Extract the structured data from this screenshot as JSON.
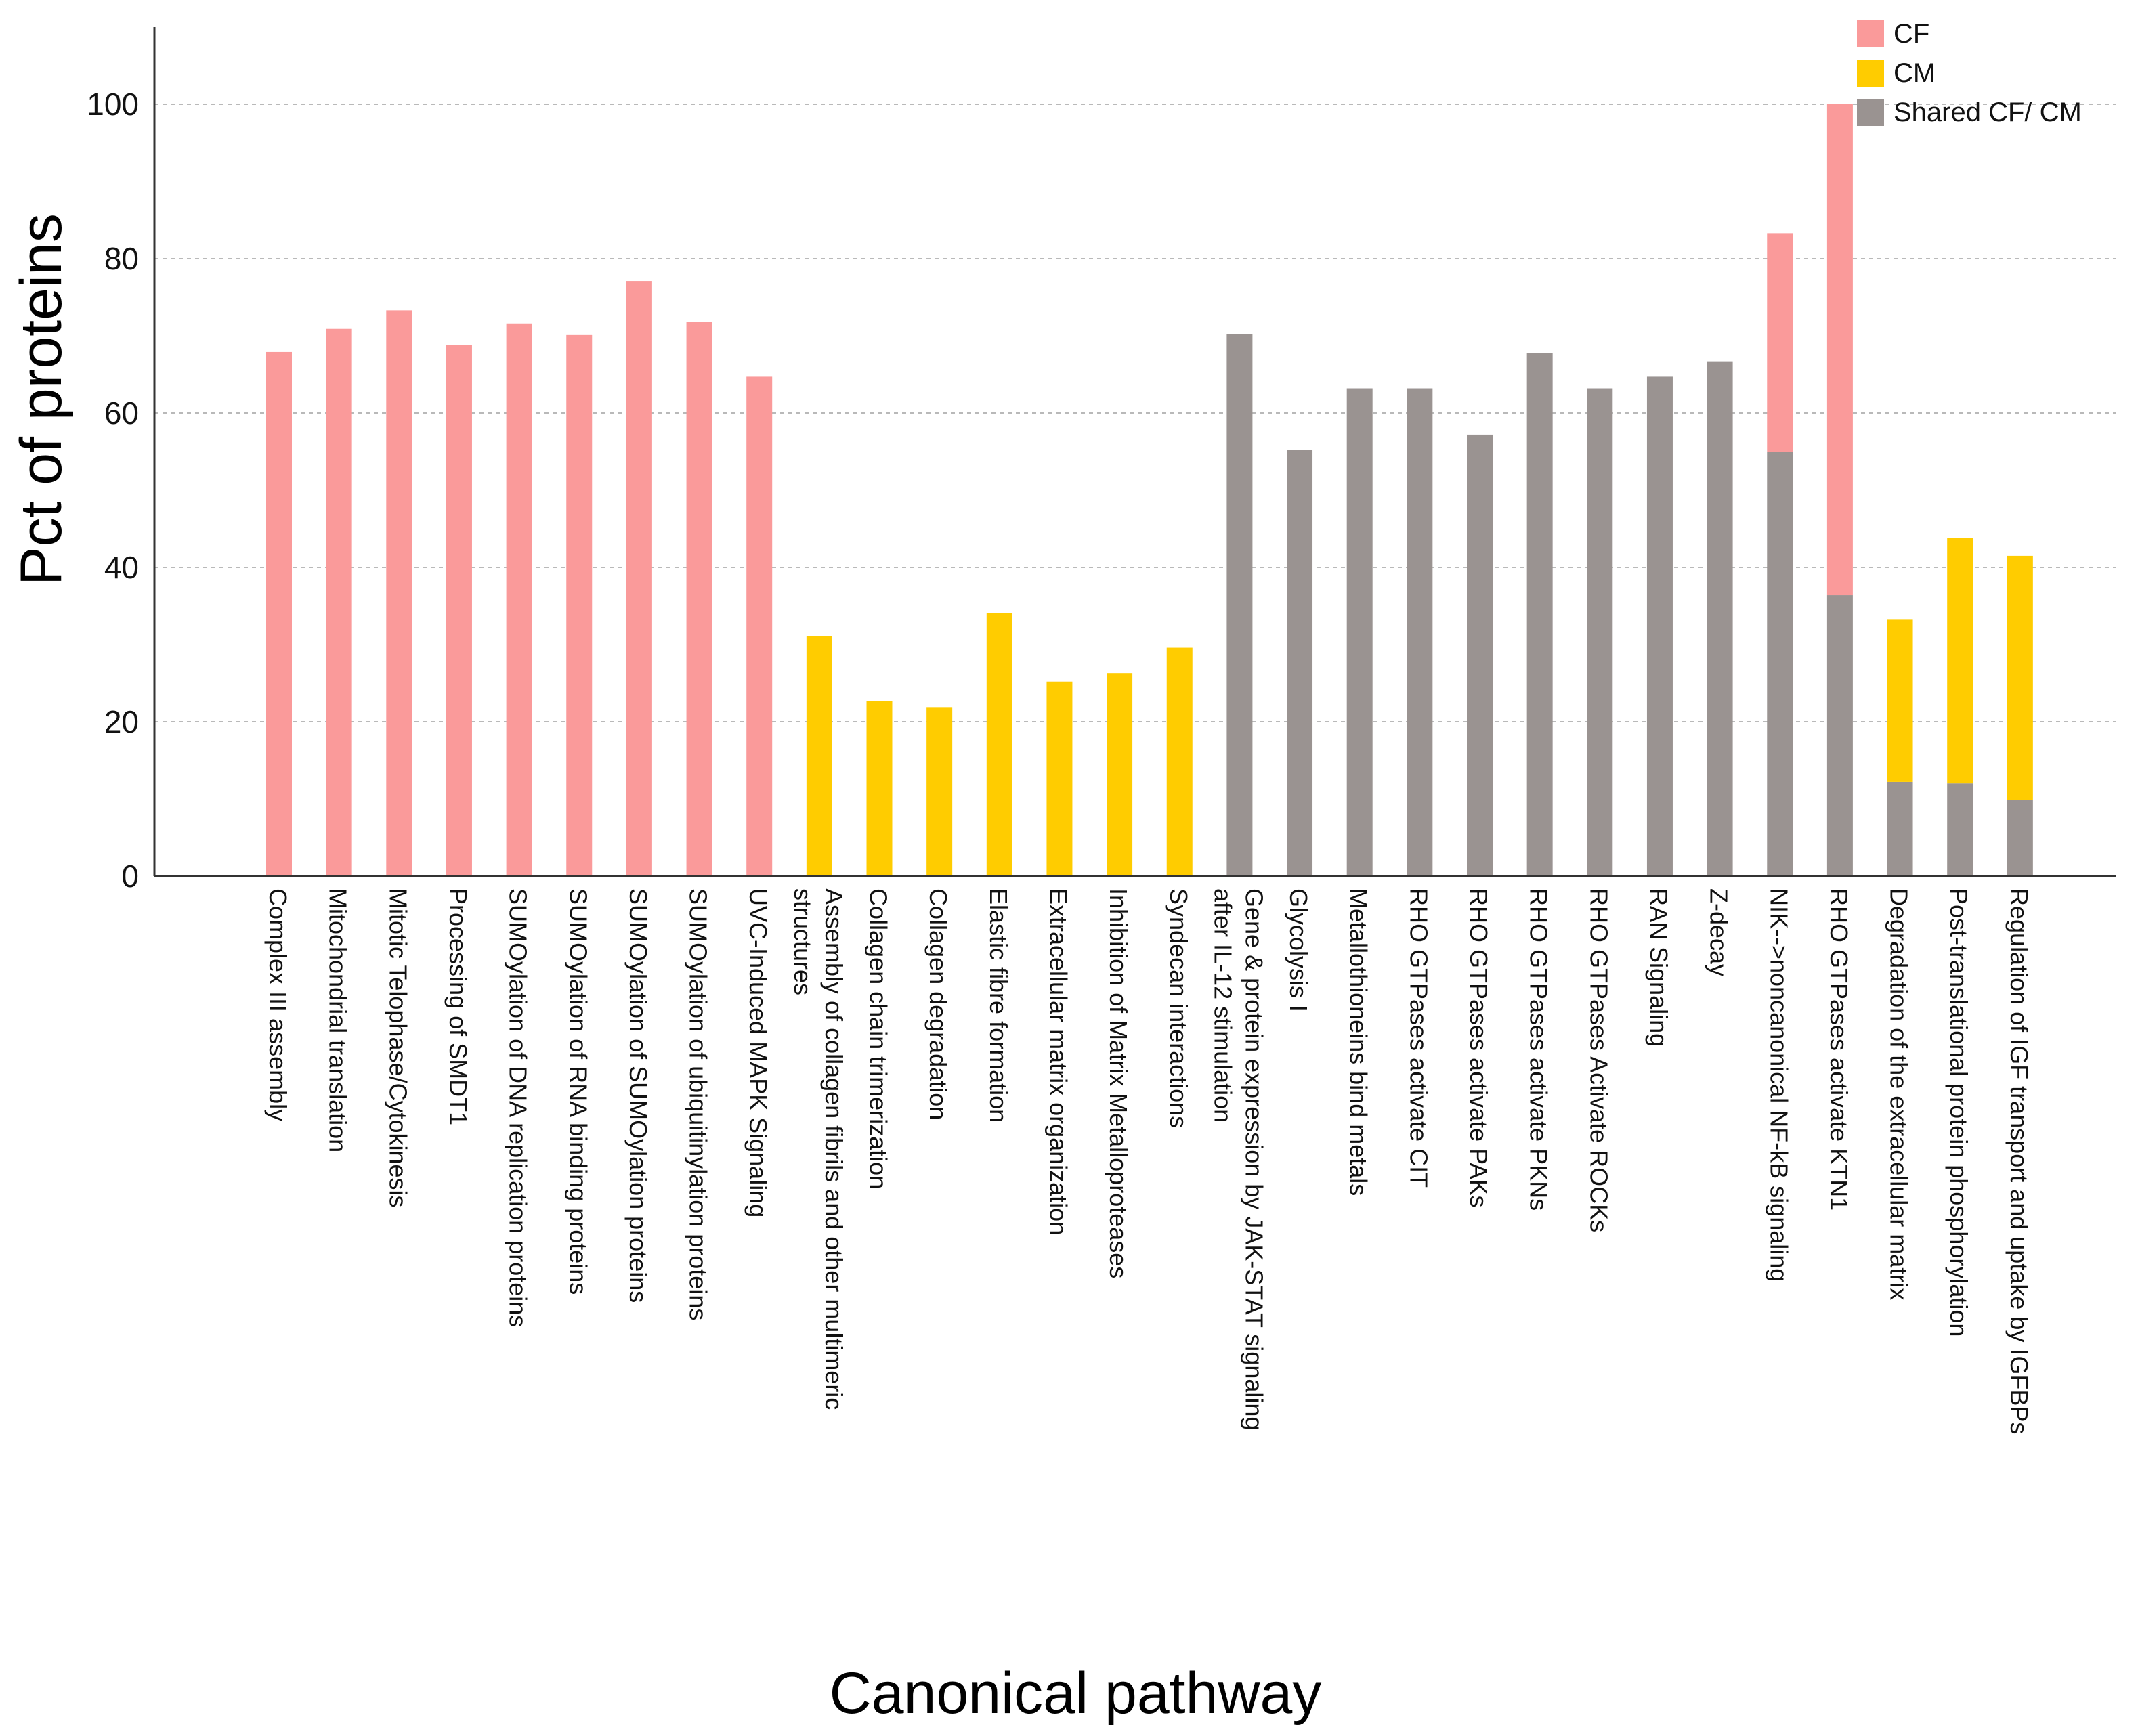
{
  "chart_data": {
    "type": "bar",
    "stacked": true,
    "title": "",
    "xlabel": "Canonical pathway",
    "ylabel": "Pct of proteins",
    "ylim": [
      0,
      110
    ],
    "yticks": [
      0,
      20,
      40,
      60,
      80,
      100
    ],
    "grid": "horizontal-dashed",
    "legend_position": "top-right",
    "categories": [
      [
        "Complex III assembly"
      ],
      [
        "Mitochondrial translation"
      ],
      [
        "Mitotic Telophase/Cytokinesis"
      ],
      [
        "Processing of SMDT1"
      ],
      [
        "SUMOylation of DNA replication proteins"
      ],
      [
        "SUMOylation of RNA binding proteins"
      ],
      [
        "SUMOylation of SUMOylation proteins"
      ],
      [
        "SUMOylation of ubiquitinylation proteins"
      ],
      [
        "UVC-Induced MAPK Signaling"
      ],
      [
        "Assembly of collagen fibrils and other multimeric",
        "structures"
      ],
      [
        "Collagen chain trimerization"
      ],
      [
        "Collagen degradation"
      ],
      [
        "Elastic fibre formation"
      ],
      [
        "Extracellular matrix organization"
      ],
      [
        "Inhibition of Matrix Metalloproteases"
      ],
      [
        "Syndecan interactions"
      ],
      [
        "Gene & protein expression by JAK-STAT signaling",
        "after IL-12 stimulation"
      ],
      [
        "Glycolysis I"
      ],
      [
        "Metallothioneins bind metals"
      ],
      [
        "RHO GTPases activate CIT"
      ],
      [
        "RHO GTPases activate PAKs"
      ],
      [
        "RHO GTPases activate PKNs"
      ],
      [
        "RHO GTPases Activate ROCKs"
      ],
      [
        "RAN Signaling"
      ],
      [
        "Z-decay"
      ],
      [
        "NIK-->noncanonical NF-kB signaling"
      ],
      [
        "RHO GTPases activate KTN1"
      ],
      [
        "Degradation of the extracellular matrix"
      ],
      [
        "Post-translational protein phosphorylation"
      ],
      [
        "Regulation of IGF transport and uptake by IGFBPs"
      ]
    ],
    "series": [
      {
        "name": "Shared CF/ CM",
        "color": "#9a9391",
        "values": [
          0,
          0,
          0,
          0,
          0,
          0,
          0,
          0,
          0,
          0,
          0,
          0,
          0,
          0,
          0,
          0,
          70.2,
          55.2,
          63.2,
          63.2,
          57.2,
          67.8,
          63.2,
          64.7,
          66.7,
          55.0,
          36.4,
          12.2,
          12.0,
          9.9
        ]
      },
      {
        "name": "CF",
        "color": "#fa9a9a",
        "values": [
          67.9,
          70.9,
          73.3,
          68.8,
          71.6,
          70.1,
          77.1,
          71.8,
          64.7,
          0,
          0,
          0,
          0,
          0,
          0,
          0,
          0,
          0,
          0,
          0,
          0,
          0,
          0,
          0,
          0,
          28.3,
          63.6,
          0,
          0,
          0
        ]
      },
      {
        "name": "CM",
        "color": "#ffcc00",
        "values": [
          0,
          0,
          0,
          0,
          0,
          0,
          0,
          0,
          0,
          31.1,
          22.7,
          21.9,
          34.1,
          25.2,
          26.3,
          29.6,
          0,
          0,
          0,
          0,
          0,
          0,
          0,
          0,
          0,
          0,
          0,
          21.1,
          31.8,
          31.6
        ]
      }
    ],
    "legend": [
      {
        "label": "CF",
        "color": "#fa9a9a"
      },
      {
        "label": "CM",
        "color": "#ffcc00"
      },
      {
        "label": "Shared CF/ CM",
        "color": "#9a9391"
      }
    ]
  }
}
